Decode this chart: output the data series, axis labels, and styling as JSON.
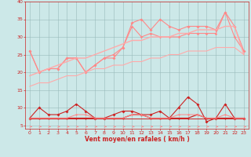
{
  "x": [
    0,
    1,
    2,
    3,
    4,
    5,
    6,
    7,
    8,
    9,
    10,
    11,
    12,
    13,
    14,
    15,
    16,
    17,
    18,
    19,
    20,
    21,
    22,
    23
  ],
  "line_rafales_spiky": [
    26,
    20,
    21,
    21,
    24,
    24,
    20,
    22,
    24,
    24,
    27,
    34,
    35,
    32,
    35,
    33,
    32,
    33,
    33,
    33,
    32,
    37,
    33,
    26
  ],
  "line_rafales_smooth": [
    26,
    20,
    21,
    21,
    24,
    24,
    20,
    22,
    24,
    25,
    27,
    33,
    30,
    31,
    30,
    30,
    30,
    31,
    31,
    31,
    31,
    37,
    30,
    26
  ],
  "line_trend_upper": [
    19,
    20,
    21,
    22,
    23,
    24,
    24,
    25,
    26,
    27,
    28,
    29,
    29,
    30,
    30,
    30,
    31,
    31,
    32,
    32,
    32,
    33,
    33,
    25
  ],
  "line_trend_lower": [
    16,
    17,
    17,
    18,
    19,
    19,
    20,
    21,
    21,
    22,
    22,
    23,
    23,
    24,
    24,
    25,
    25,
    26,
    26,
    26,
    27,
    27,
    27,
    25
  ],
  "line_moyen_spiky": [
    7,
    10,
    8,
    8,
    9,
    11,
    9,
    7,
    7,
    8,
    9,
    9,
    8,
    8,
    9,
    7,
    10,
    13,
    11,
    6,
    7,
    11,
    7,
    7
  ],
  "line_moyen_flat1": [
    7,
    7,
    7,
    7,
    7,
    7,
    7,
    7,
    7,
    7,
    7,
    8,
    8,
    7,
    7,
    7,
    7,
    7,
    8,
    7,
    7,
    7,
    7,
    7
  ],
  "line_moyen_flat2": [
    7,
    7,
    7,
    7,
    7,
    8,
    8,
    7,
    7,
    7,
    7,
    8,
    8,
    7,
    7,
    7,
    8,
    8,
    8,
    7,
    7,
    8,
    7,
    7
  ],
  "line_moyen_flat3": [
    7,
    7,
    7,
    7,
    7,
    7,
    7,
    7,
    7,
    7,
    7,
    7,
    7,
    7,
    7,
    7,
    7,
    7,
    7,
    7,
    7,
    7,
    7,
    7
  ],
  "color_dark_red": "#cc2222",
  "color_salmon": "#ff8888",
  "color_light_salmon": "#ffaaaa",
  "bg_color": "#cce8e8",
  "grid_color": "#99bbbb",
  "xlabel": "Vent moyen/en rafales ( km/h )",
  "ylim": [
    4,
    40
  ],
  "yticks": [
    5,
    10,
    15,
    20,
    25,
    30,
    35,
    40
  ],
  "xlim": [
    -0.5,
    23.5
  ],
  "xticks": [
    0,
    1,
    2,
    3,
    4,
    5,
    6,
    7,
    8,
    9,
    10,
    11,
    12,
    13,
    14,
    15,
    16,
    17,
    18,
    19,
    20,
    21,
    22,
    23
  ]
}
